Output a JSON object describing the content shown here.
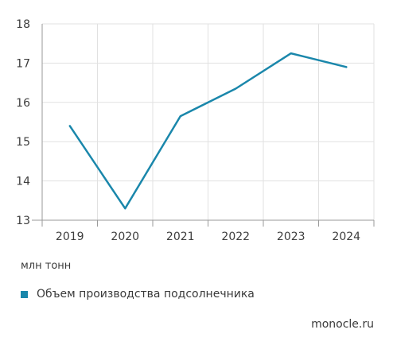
{
  "chart_data": {
    "type": "line",
    "x": [
      "2019",
      "2020",
      "2021",
      "2022",
      "2023",
      "2024"
    ],
    "series": [
      {
        "name": "Объем производства подсолнечника",
        "values": [
          15.4,
          13.3,
          15.65,
          16.35,
          17.25,
          16.9
        ]
      }
    ],
    "yticks": [
      "13",
      "14",
      "15",
      "16",
      "17",
      "18"
    ],
    "ylim": [
      13,
      18
    ],
    "ylabel": "млн тонн",
    "grid": true,
    "legend_position": "bottom-left",
    "colors": {
      "line": "#1a87ab",
      "grid": "#e1e1e1",
      "axis": "#9a9a9a"
    }
  },
  "unit_label": "млн тонн",
  "legend": {
    "label": "Объем производства подсолнечника"
  },
  "source": "monocle.ru"
}
